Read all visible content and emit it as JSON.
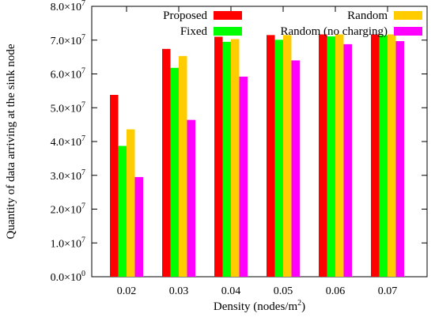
{
  "chart_data": {
    "type": "bar",
    "title": "",
    "xlabel_main": "Density (nodes/m",
    "xlabel_sup": "2",
    "xlabel_tail": ")",
    "ylabel": "Quantity of data arriving at the sink node",
    "categories": [
      "0.02",
      "0.03",
      "0.04",
      "0.05",
      "0.06",
      "0.07"
    ],
    "ylim": [
      0,
      80000000
    ],
    "yticks": [
      {
        "value": 0,
        "mant": "0.0×10",
        "exp": "0"
      },
      {
        "value": 10000000,
        "mant": "1.0×10",
        "exp": "7"
      },
      {
        "value": 20000000,
        "mant": "2.0×10",
        "exp": "7"
      },
      {
        "value": 30000000,
        "mant": "3.0×10",
        "exp": "7"
      },
      {
        "value": 40000000,
        "mant": "4.0×10",
        "exp": "7"
      },
      {
        "value": 50000000,
        "mant": "5.0×10",
        "exp": "7"
      },
      {
        "value": 60000000,
        "mant": "6.0×10",
        "exp": "7"
      },
      {
        "value": 70000000,
        "mant": "7.0×10",
        "exp": "7"
      },
      {
        "value": 80000000,
        "mant": "8.0×10",
        "exp": "7"
      }
    ],
    "series": [
      {
        "name": "Proposed",
        "color": "#ff0000",
        "values": [
          53800000,
          67400000,
          71000000,
          71500000,
          71700000,
          71700000
        ]
      },
      {
        "name": "Fixed",
        "color": "#00ff00",
        "values": [
          38700000,
          61800000,
          69500000,
          70100000,
          71100000,
          71400000
        ]
      },
      {
        "name": "Random",
        "color": "#ffcc00",
        "values": [
          43600000,
          65300000,
          70300000,
          71500000,
          71700000,
          71700000
        ]
      },
      {
        "name": "Random (no charging)",
        "color": "#ff00ff",
        "values": [
          29500000,
          46400000,
          59200000,
          64000000,
          68800000,
          69700000
        ]
      }
    ],
    "grid": false,
    "legend_position": "top"
  }
}
